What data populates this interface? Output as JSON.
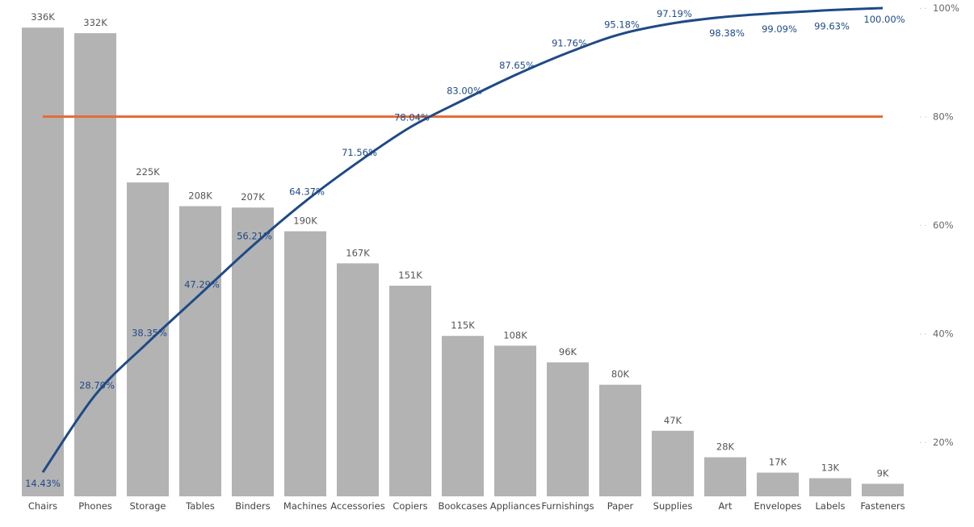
{
  "chart_data": {
    "type": "bar+line",
    "categories": [
      "Chairs",
      "Phones",
      "Storage",
      "Tables",
      "Binders",
      "Machines",
      "Accessories",
      "Copiers",
      "Bookcases",
      "Appliances",
      "Furnishings",
      "Paper",
      "Supplies",
      "Art",
      "Envelopes",
      "Labels",
      "Fasteners"
    ],
    "bar_series": {
      "values": [
        336,
        332,
        225,
        208,
        207,
        190,
        167,
        151,
        115,
        108,
        96,
        80,
        47,
        28,
        17,
        13,
        9
      ],
      "value_labels": [
        "336K",
        "332K",
        "225K",
        "208K",
        "207K",
        "190K",
        "167K",
        "151K",
        "115K",
        "108K",
        "96K",
        "80K",
        "47K",
        "28K",
        "17K",
        "13K",
        "9K"
      ],
      "unit": "K",
      "ylim": [
        0,
        350
      ],
      "color": "#B3B3B3"
    },
    "line_series": {
      "values": [
        14.43,
        28.7,
        38.35,
        47.29,
        56.21,
        64.37,
        71.56,
        78.04,
        83.0,
        87.65,
        91.76,
        95.18,
        97.19,
        98.38,
        99.09,
        99.63,
        100.0
      ],
      "value_labels": [
        "14.43%",
        "28.70%",
        "38.35%",
        "47.29%",
        "56.21%",
        "64.37%",
        "71.56%",
        "78.04%",
        "83.00%",
        "87.65%",
        "91.76%",
        "95.18%",
        "97.19%",
        "98.38%",
        "99.09%",
        "99.63%",
        "100.00%"
      ],
      "color": "#1E4A87"
    },
    "threshold": {
      "value": 80,
      "color": "#E66C37"
    },
    "secondary_axis": {
      "position": "right",
      "ylim": [
        10,
        100
      ],
      "ticks": [
        20,
        40,
        60,
        80,
        100
      ],
      "tick_labels": [
        "20%",
        "40%",
        "60%",
        "80%",
        "100%"
      ]
    },
    "grid": false,
    "legend": "none",
    "title": "",
    "xlabel": "",
    "ylabel": ""
  }
}
